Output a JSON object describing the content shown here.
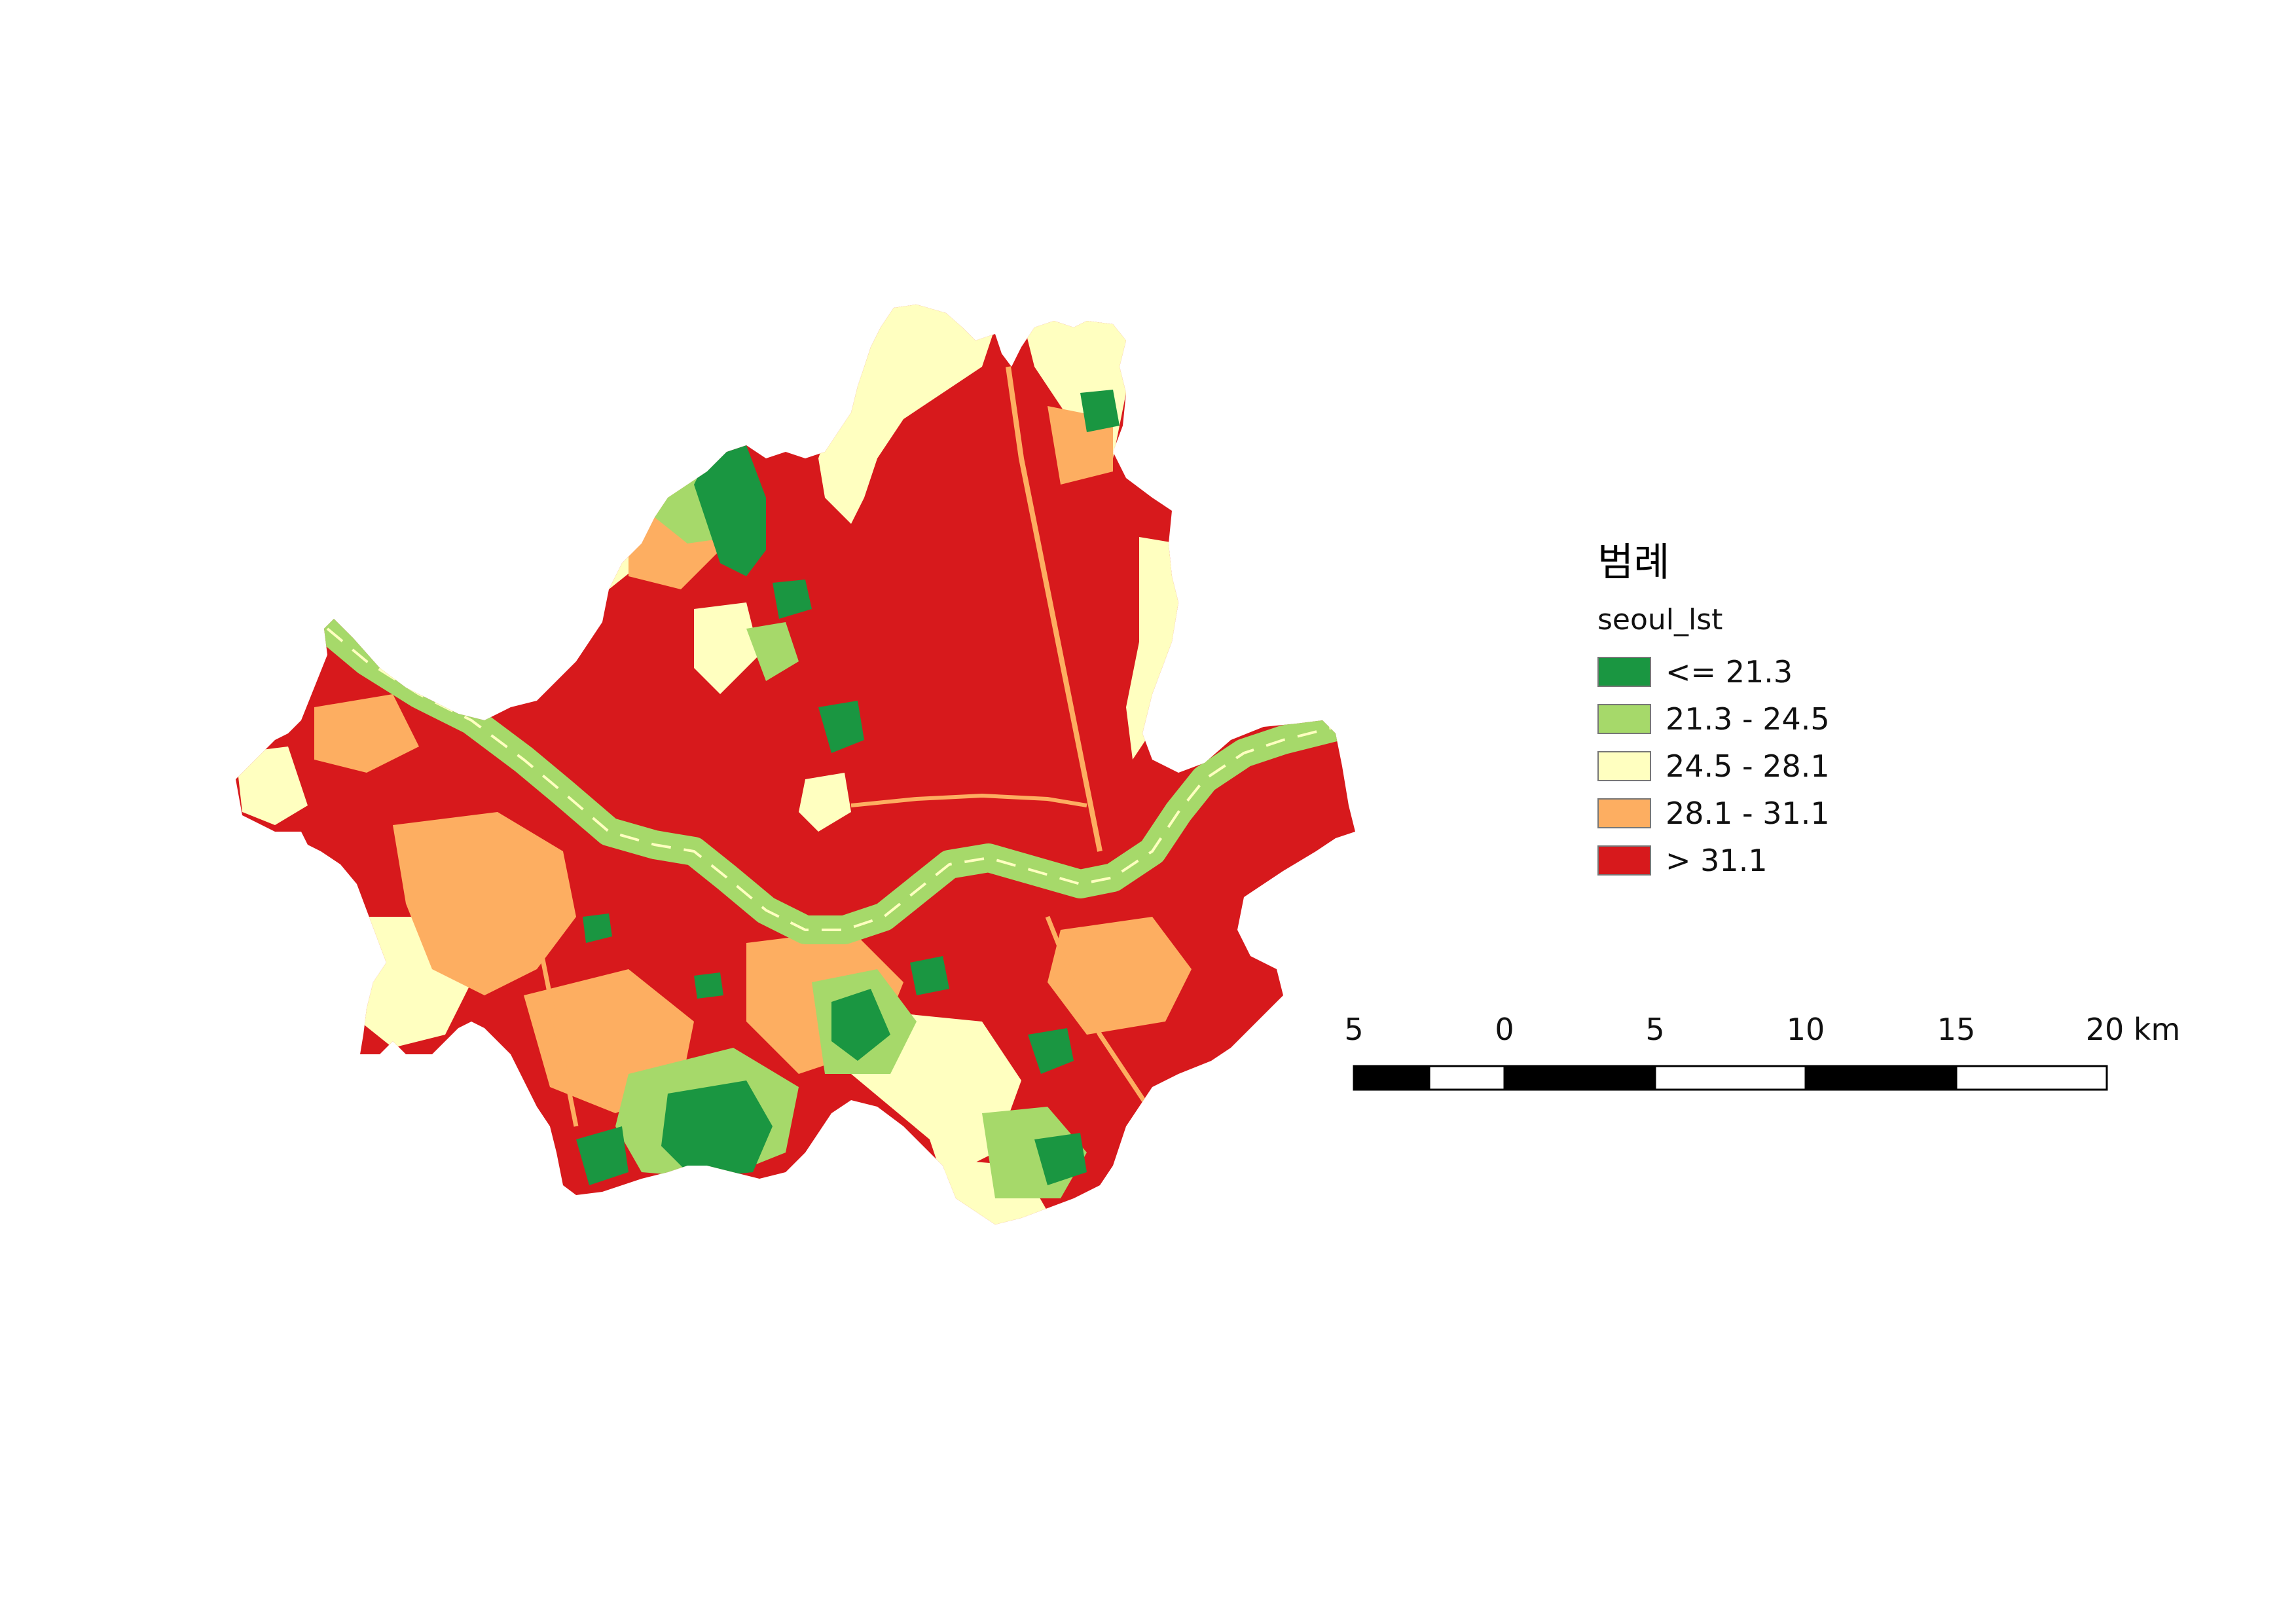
{
  "legend": {
    "title": "범례",
    "layer_name": "seoul_lst",
    "classes": [
      {
        "label": "<= 21.3",
        "color": "#1a9641"
      },
      {
        "label": "21.3 - 24.5",
        "color": "#a6d96a"
      },
      {
        "label": "24.5 - 28.1",
        "color": "#ffffc0"
      },
      {
        "label": "28.1 - 31.1",
        "color": "#fdae61"
      },
      {
        "label": "> 31.1",
        "color": "#d7191c"
      }
    ]
  },
  "scalebar": {
    "ticks": [
      "5",
      "0",
      "5",
      "10",
      "15",
      "20 km"
    ],
    "segment_colors": [
      "#000000",
      "#ffffff"
    ]
  },
  "map": {
    "region_name_icon": "seoul-lst-raster",
    "colors": {
      "very_low": "#1a9641",
      "low": "#a6d96a",
      "mid": "#ffffc0",
      "high": "#fdae61",
      "very_high": "#d7191c"
    }
  }
}
